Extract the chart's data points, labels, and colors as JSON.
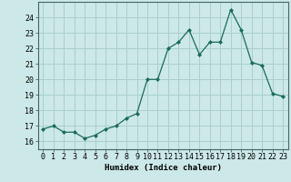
{
  "x": [
    0,
    1,
    2,
    3,
    4,
    5,
    6,
    7,
    8,
    9,
    10,
    11,
    12,
    13,
    14,
    15,
    16,
    17,
    18,
    19,
    20,
    21,
    22,
    23
  ],
  "y": [
    16.8,
    17.0,
    16.6,
    16.6,
    16.2,
    16.4,
    16.8,
    17.0,
    17.5,
    17.8,
    20.0,
    20.0,
    22.0,
    22.4,
    23.2,
    21.6,
    22.4,
    22.4,
    24.5,
    23.2,
    21.1,
    20.9,
    19.1,
    18.9
  ],
  "xlabel": "Humidex (Indice chaleur)",
  "ylim": [
    15.5,
    25.0
  ],
  "xlim": [
    -0.5,
    23.5
  ],
  "bg_color": "#cce8e8",
  "grid_color": "#aacece",
  "line_color": "#1a6b5a",
  "marker_color": "#1a6b5a",
  "yticks": [
    16,
    17,
    18,
    19,
    20,
    21,
    22,
    23,
    24
  ],
  "xticks": [
    0,
    1,
    2,
    3,
    4,
    5,
    6,
    7,
    8,
    9,
    10,
    11,
    12,
    13,
    14,
    15,
    16,
    17,
    18,
    19,
    20,
    21,
    22,
    23
  ],
  "axis_fontsize": 6.5,
  "tick_fontsize": 6.0
}
